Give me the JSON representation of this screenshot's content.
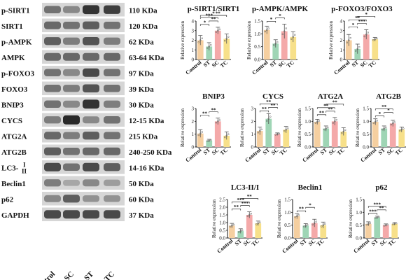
{
  "figure": {
    "blot": {
      "proteins": [
        {
          "name": "p-SIRT1",
          "size": "110 KDa",
          "intensity": [
            0.55,
            0.45,
            0.85,
            0.8
          ]
        },
        {
          "name": "SIRT1",
          "size": "120 KDa",
          "intensity": [
            0.6,
            0.55,
            0.65,
            0.55
          ]
        },
        {
          "name": "p-AMPK",
          "size": "62 KDa",
          "intensity": [
            0.65,
            0.5,
            0.7,
            0.5
          ]
        },
        {
          "name": "AMPK",
          "size": "63-64 KDa",
          "intensity": [
            0.6,
            0.6,
            0.6,
            0.6
          ]
        },
        {
          "name": "p-FOXO3",
          "size": "97 KDa",
          "intensity": [
            0.55,
            0.45,
            0.75,
            0.55
          ]
        },
        {
          "name": "FOXO3",
          "size": "39 KDa",
          "intensity": [
            0.55,
            0.5,
            0.7,
            0.55
          ]
        },
        {
          "name": "BNIP3",
          "size": "30 KDa",
          "intensity": [
            0.55,
            0.45,
            0.85,
            0.5
          ]
        },
        {
          "name": "CYCS",
          "size": "12-15 KDa",
          "intensity": [
            0.5,
            0.9,
            0.45,
            0.55
          ]
        },
        {
          "name": "ATG2A",
          "size": "215 KDa",
          "intensity": [
            0.6,
            0.5,
            0.65,
            0.55
          ]
        },
        {
          "name": "ATG2B",
          "size": "240-250 KDa",
          "intensity": [
            0.65,
            0.55,
            0.6,
            0.6
          ]
        },
        {
          "name": "LC3-",
          "name_sup": "I",
          "name_sub": "II",
          "size": "14-16 KDa",
          "intensity": [
            0.75,
            0.55,
            0.75,
            0.65
          ]
        },
        {
          "name": "Beclin1",
          "size": "50 KDa",
          "intensity": [
            0.5,
            0.3,
            0.45,
            0.35
          ]
        },
        {
          "name": "p62",
          "size": "60 KDa",
          "intensity": [
            0.45,
            0.65,
            0.4,
            0.4
          ]
        },
        {
          "name": "GAPDH",
          "size": "37 KDa",
          "intensity": [
            0.75,
            0.75,
            0.75,
            0.75
          ]
        }
      ],
      "lanes": [
        "Control",
        "SC",
        "ST",
        "TC"
      ]
    },
    "colors": {
      "Control": "#f5cfa0",
      "ST": "#9fd5b5",
      "SC": "#f4a9a9",
      "TC": "#f7e08a",
      "error": "#555555"
    }
  },
  "chart_data": [
    {
      "type": "bar",
      "title": "p-SIRT1/SIRT1",
      "ylabel": "Relative expression",
      "categories": [
        "Control",
        "ST",
        "SC",
        "TC"
      ],
      "values": [
        2.0,
        1.35,
        3.0,
        2.15
      ],
      "errors": [
        0.5,
        0.4,
        0.35,
        0.5
      ],
      "ylim": [
        0,
        4
      ],
      "yticks": [
        0,
        1,
        2,
        3,
        4
      ],
      "significance": [
        "*",
        "**",
        "***",
        "**",
        "*"
      ]
    },
    {
      "type": "bar",
      "title": "p-AMPK/AMPK",
      "ylabel": "Relative expression",
      "categories": [
        "Control",
        "ST",
        "SC",
        "TC"
      ],
      "values": [
        1.15,
        0.62,
        1.1,
        0.88
      ],
      "errors": [
        0.15,
        0.15,
        0.28,
        0.2
      ],
      "ylim": [
        0,
        1.5
      ],
      "yticks": [
        0.0,
        0.5,
        1.0,
        1.5
      ],
      "significance": [
        "*",
        "*"
      ]
    },
    {
      "type": "bar",
      "title": "p-FOXO3/FOXO3",
      "ylabel": "Relative expression",
      "categories": [
        "Control",
        "ST",
        "SC",
        "TC"
      ],
      "values": [
        2.0,
        1.1,
        2.6,
        2.1
      ],
      "errors": [
        0.6,
        0.5,
        0.5,
        0.2
      ],
      "ylim": [
        0,
        4
      ],
      "yticks": [
        0,
        1,
        2,
        3,
        4
      ],
      "significance": [
        "*",
        "***",
        "**",
        "*"
      ]
    },
    {
      "type": "bar",
      "title": "BNIP3",
      "ylabel": "Relative expression",
      "categories": [
        "Control",
        "ST",
        "SC",
        "TC"
      ],
      "values": [
        1.05,
        0.5,
        2.0,
        0.88
      ],
      "errors": [
        0.3,
        0.1,
        0.25,
        0.3
      ],
      "ylim": [
        0,
        3
      ],
      "yticks": [
        0,
        1,
        2,
        3
      ],
      "significance": [
        "**",
        "**"
      ]
    },
    {
      "type": "bar",
      "title": "CYCS",
      "ylabel": "Relative expression",
      "categories": [
        "Control",
        "ST",
        "SC",
        "TC"
      ],
      "values": [
        1.25,
        2.2,
        1.0,
        1.35
      ],
      "errors": [
        0.3,
        0.4,
        0.1,
        0.25
      ],
      "ylim": [
        0,
        3
      ],
      "yticks": [
        0,
        1,
        2,
        3
      ],
      "significance": [
        "**",
        "**",
        "**"
      ]
    },
    {
      "type": "bar",
      "title": "ATG2A",
      "ylabel": "Relative expression",
      "categories": [
        "Control",
        "ST",
        "SC",
        "TC"
      ],
      "values": [
        0.98,
        0.72,
        1.0,
        0.6
      ],
      "errors": [
        0.1,
        0.1,
        0.15,
        0.15
      ],
      "ylim": [
        0,
        1.5
      ],
      "yticks": [
        0.0,
        0.5,
        1.0,
        1.5
      ],
      "significance": [
        "**",
        "**",
        "**",
        "**"
      ]
    },
    {
      "type": "bar",
      "title": "ATG2B",
      "ylabel": "Relative expression",
      "categories": [
        "Control",
        "ST",
        "SC",
        "TC"
      ],
      "values": [
        0.98,
        0.72,
        0.92,
        0.68
      ],
      "errors": [
        0.12,
        0.1,
        0.12,
        0.1
      ],
      "ylim": [
        0,
        1.5
      ],
      "yticks": [
        0.0,
        0.5,
        1.0,
        1.5
      ],
      "significance": [
        "*",
        "*",
        "**"
      ]
    },
    {
      "type": "bar",
      "title": "LC3-II/I",
      "ylabel": "Relative expression",
      "categories": [
        "Control",
        "ST",
        "SC",
        "TC"
      ],
      "values": [
        0.8,
        0.45,
        1.5,
        0.95
      ],
      "errors": [
        0.15,
        0.15,
        0.2,
        0.15
      ],
      "ylim": [
        0,
        2.5
      ],
      "yticks": [
        0.0,
        0.5,
        1.0,
        1.5,
        2.0,
        2.5
      ],
      "significance": [
        "**",
        "***",
        "***",
        "**"
      ]
    },
    {
      "type": "bar",
      "title": "Beclin1",
      "ylabel": "Relative expression",
      "categories": [
        "Control",
        "ST",
        "SC",
        "TC"
      ],
      "values": [
        0.85,
        0.48,
        0.58,
        0.5
      ],
      "errors": [
        0.1,
        0.08,
        0.15,
        0.12
      ],
      "ylim": [
        0,
        1.5
      ],
      "yticks": [
        0.0,
        0.5,
        1.0,
        1.5
      ],
      "significance": [
        "**",
        "*"
      ]
    },
    {
      "type": "bar",
      "title": "p62",
      "ylabel": "Relative expression",
      "categories": [
        "Control",
        "ST",
        "SC",
        "TC"
      ],
      "values": [
        0.55,
        0.8,
        0.5,
        0.55
      ],
      "errors": [
        0.08,
        0.05,
        0.05,
        0.05
      ],
      "ylim": [
        0,
        1.5
      ],
      "yticks": [
        0.0,
        0.5,
        1.0,
        1.5
      ],
      "significance": [
        "***",
        "**",
        "***"
      ]
    }
  ]
}
